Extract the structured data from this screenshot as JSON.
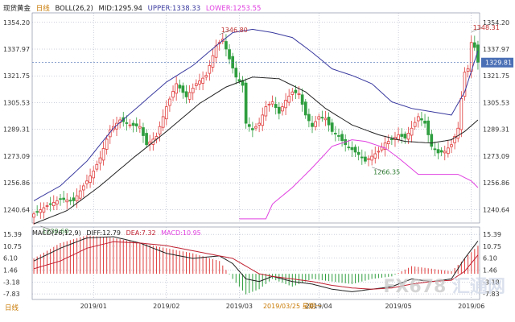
{
  "header": {
    "instrument": "现货黄金",
    "period_tag": "日线",
    "boll_label": "BOLL(26,2)",
    "mid": "MID:1295.94",
    "upper": "UPPER:1338.33",
    "lower": "LOWER:1253.55"
  },
  "macd_header": {
    "label": "MACD(26,12,9)",
    "diff": "DIFF:12.79",
    "dea": "DEA:7.32",
    "macd": "MACD:10.95"
  },
  "footer": {
    "period": "日线",
    "cursor_date": "2019/03/25 星期一"
  },
  "watermark": {
    "text1": "FX678",
    "text2": "汇通网"
  },
  "colors": {
    "up": "#e03c3c",
    "down": "#2e9e3e",
    "mid": "#222222",
    "upper": "#3a3aa0",
    "lower": "#e040e0",
    "diff": "#222222",
    "dea": "#c02030",
    "grid": "#9aa0b8",
    "last_price_bg": "#4a6fb5"
  },
  "chart_data": [
    {
      "type": "candlestick",
      "title": "",
      "x_ticks": [
        "2019/01",
        "2019/02",
        "2019/03",
        "2019/04",
        "2019/05",
        "2019/06"
      ],
      "y_ticks": [
        1354.2,
        1337.97,
        1321.75,
        1305.53,
        1289.31,
        1273.09,
        1256.86,
        1240.64
      ],
      "ylim": [
        1232.5,
        1358
      ],
      "last_price": "1329.81",
      "annotations": [
        {
          "label": "1346.80",
          "bar": 56,
          "value": 1346.8
        },
        {
          "label": "1348.31",
          "bar": 132,
          "value": 1348.31
        },
        {
          "label": "1266.35",
          "bar": 102,
          "value": 1266.35
        },
        {
          "label": "1230.60",
          "bar": 2,
          "value": 1230.6
        }
      ],
      "close_anchors": [
        [
          0,
          1238
        ],
        [
          4,
          1243
        ],
        [
          8,
          1247
        ],
        [
          12,
          1246
        ],
        [
          14,
          1252
        ],
        [
          18,
          1264
        ],
        [
          20,
          1272
        ],
        [
          23,
          1289
        ],
        [
          26,
          1295
        ],
        [
          29,
          1292
        ],
        [
          32,
          1291
        ],
        [
          34,
          1280
        ],
        [
          37,
          1285
        ],
        [
          40,
          1303
        ],
        [
          43,
          1317
        ],
        [
          46,
          1309
        ],
        [
          49,
          1317
        ],
        [
          52,
          1322
        ],
        [
          55,
          1340
        ],
        [
          57,
          1344
        ],
        [
          59,
          1332
        ],
        [
          61,
          1321
        ],
        [
          63,
          1316
        ],
        [
          64,
          1293
        ],
        [
          66,
          1289
        ],
        [
          68,
          1293
        ],
        [
          70,
          1303
        ],
        [
          72,
          1306
        ],
        [
          74,
          1299
        ],
        [
          76,
          1307
        ],
        [
          78,
          1312
        ],
        [
          80,
          1311
        ],
        [
          82,
          1298
        ],
        [
          84,
          1291
        ],
        [
          86,
          1297
        ],
        [
          88,
          1296
        ],
        [
          90,
          1288
        ],
        [
          92,
          1285
        ],
        [
          94,
          1280
        ],
        [
          96,
          1277
        ],
        [
          98,
          1274
        ],
        [
          100,
          1270
        ],
        [
          102,
          1273
        ],
        [
          104,
          1276
        ],
        [
          106,
          1281
        ],
        [
          108,
          1283
        ],
        [
          110,
          1286
        ],
        [
          112,
          1284
        ],
        [
          114,
          1290
        ],
        [
          116,
          1297
        ],
        [
          118,
          1293
        ],
        [
          120,
          1279
        ],
        [
          122,
          1275
        ],
        [
          124,
          1276
        ],
        [
          126,
          1280
        ],
        [
          128,
          1290
        ],
        [
          129,
          1308
        ],
        [
          130,
          1324
        ],
        [
          131,
          1326
        ],
        [
          132,
          1342
        ],
        [
          133,
          1339
        ],
        [
          134,
          1330
        ]
      ],
      "series": [
        {
          "name": "MID",
          "anchors": [
            [
              0,
              1232
            ],
            [
              10,
              1240
            ],
            [
              20,
              1255
            ],
            [
              30,
              1272
            ],
            [
              40,
              1288
            ],
            [
              50,
              1305
            ],
            [
              58,
              1315
            ],
            [
              66,
              1321
            ],
            [
              74,
              1320
            ],
            [
              82,
              1312
            ],
            [
              88,
              1302
            ],
            [
              96,
              1292
            ],
            [
              104,
              1286
            ],
            [
              112,
              1282
            ],
            [
              120,
              1281
            ],
            [
              126,
              1283
            ],
            [
              130,
              1288
            ],
            [
              134,
              1295
            ]
          ]
        },
        {
          "name": "UPPER",
          "anchors": [
            [
              0,
              1246
            ],
            [
              8,
              1255
            ],
            [
              16,
              1270
            ],
            [
              24,
              1290
            ],
            [
              32,
              1304
            ],
            [
              40,
              1318
            ],
            [
              48,
              1328
            ],
            [
              55,
              1340
            ],
            [
              60,
              1348
            ],
            [
              66,
              1350
            ],
            [
              72,
              1348
            ],
            [
              78,
              1345
            ],
            [
              84,
              1336
            ],
            [
              90,
              1326
            ],
            [
              96,
              1322
            ],
            [
              102,
              1317
            ],
            [
              108,
              1306
            ],
            [
              114,
              1302
            ],
            [
              120,
              1300
            ],
            [
              126,
              1298
            ],
            [
              130,
              1312
            ],
            [
              134,
              1337
            ]
          ]
        },
        {
          "name": "LOWER",
          "anchors": [
            [
              62,
              1235
            ],
            [
              70,
              1235
            ],
            [
              72,
              1244
            ],
            [
              78,
              1254
            ],
            [
              84,
              1266
            ],
            [
              90,
              1279
            ],
            [
              96,
              1283
            ],
            [
              100,
              1282
            ],
            [
              106,
              1278
            ],
            [
              110,
              1272
            ],
            [
              116,
              1262
            ],
            [
              122,
              1262
            ],
            [
              128,
              1262
            ],
            [
              132,
              1258
            ],
            [
              134,
              1254
            ],
            [
              140,
              1253.55
            ]
          ]
        }
      ]
    },
    {
      "type": "bar",
      "title": "",
      "y_ticks": [
        15.39,
        10.75,
        6.1,
        1.46,
        -3.18,
        -7.83
      ],
      "ylim": [
        -10,
        17
      ],
      "macd_anchors": [
        [
          0,
          6
        ],
        [
          8,
          12
        ],
        [
          16,
          15
        ],
        [
          24,
          14
        ],
        [
          32,
          12
        ],
        [
          40,
          10
        ],
        [
          48,
          8
        ],
        [
          56,
          5
        ],
        [
          60,
          -2
        ],
        [
          64,
          -8
        ],
        [
          68,
          -6
        ],
        [
          72,
          -2
        ],
        [
          78,
          -5
        ],
        [
          84,
          -2
        ],
        [
          90,
          -3
        ],
        [
          96,
          -4
        ],
        [
          102,
          -2
        ],
        [
          108,
          -1
        ],
        [
          114,
          3
        ],
        [
          120,
          2
        ],
        [
          126,
          1
        ],
        [
          130,
          6
        ],
        [
          134,
          10.95
        ]
      ],
      "series": [
        {
          "name": "DIFF",
          "anchors": [
            [
              0,
              5
            ],
            [
              8,
              10
            ],
            [
              16,
              14
            ],
            [
              24,
              14.5
            ],
            [
              32,
              12
            ],
            [
              40,
              8
            ],
            [
              48,
              6
            ],
            [
              56,
              7
            ],
            [
              60,
              4
            ],
            [
              64,
              -2
            ],
            [
              68,
              -3
            ],
            [
              72,
              -1
            ],
            [
              78,
              -3
            ],
            [
              84,
              -4
            ],
            [
              90,
              -6
            ],
            [
              96,
              -7
            ],
            [
              102,
              -6
            ],
            [
              108,
              -5
            ],
            [
              114,
              -2
            ],
            [
              120,
              -3
            ],
            [
              126,
              -2
            ],
            [
              130,
              6
            ],
            [
              134,
              12.79
            ]
          ]
        },
        {
          "name": "DEA",
          "anchors": [
            [
              0,
              2
            ],
            [
              8,
              5
            ],
            [
              16,
              10
            ],
            [
              24,
              12.5
            ],
            [
              32,
              12
            ],
            [
              40,
              11
            ],
            [
              48,
              9
            ],
            [
              56,
              7
            ],
            [
              60,
              6
            ],
            [
              64,
              3
            ],
            [
              68,
              0
            ],
            [
              72,
              -1
            ],
            [
              78,
              -2
            ],
            [
              84,
              -3
            ],
            [
              90,
              -4.5
            ],
            [
              96,
              -5.5
            ],
            [
              102,
              -6
            ],
            [
              108,
              -5.5
            ],
            [
              114,
              -4
            ],
            [
              120,
              -3
            ],
            [
              126,
              -2.5
            ],
            [
              130,
              1
            ],
            [
              134,
              7.32
            ]
          ]
        }
      ]
    }
  ]
}
